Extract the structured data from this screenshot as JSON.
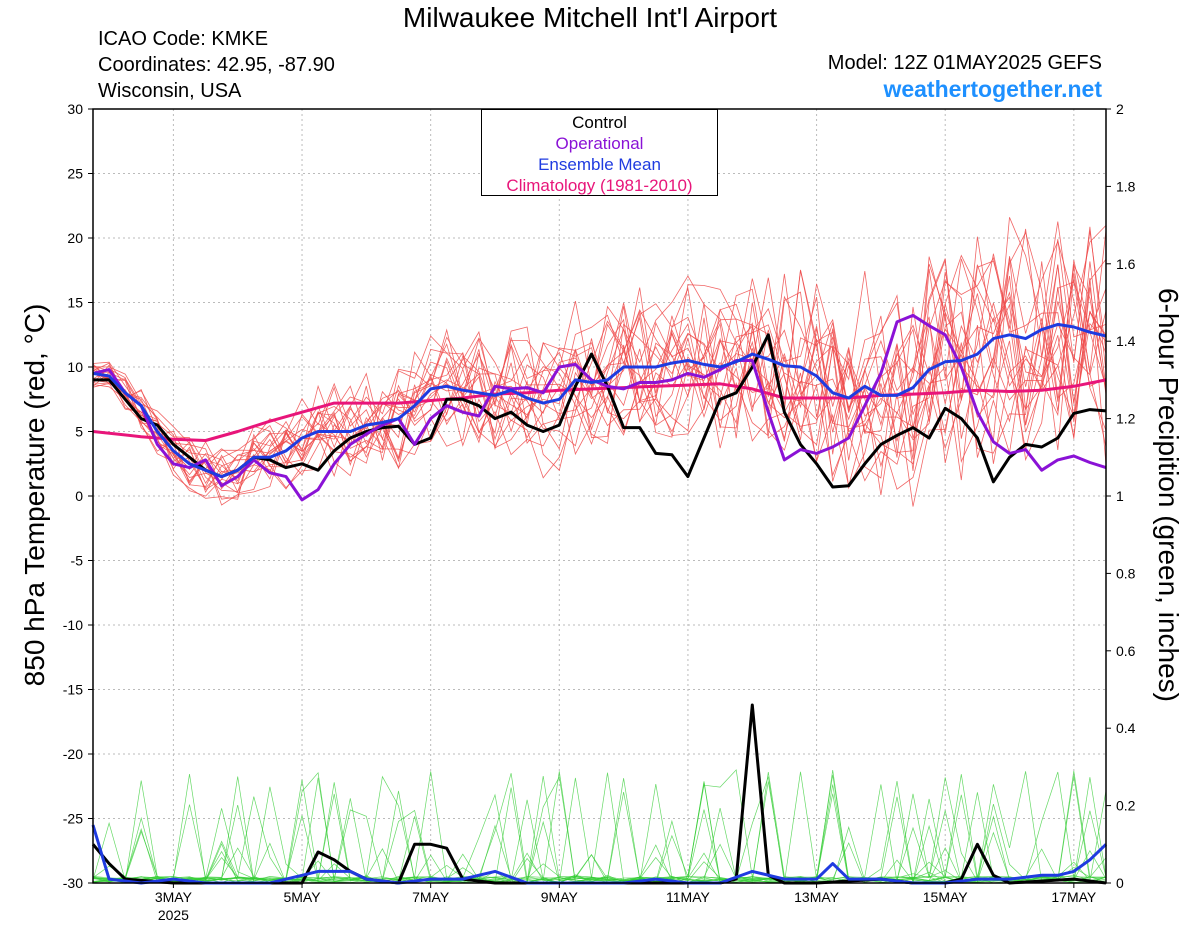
{
  "header": {
    "title": "Milwaukee Mitchell Int'l Airport",
    "icao": "ICAO Code: KMKE",
    "coords": "Coordinates: 42.95, -87.90",
    "location": "Wisconsin, USA",
    "model": "Model: 12Z 01MAY2025 GEFS",
    "brand": "weathertogether.net"
  },
  "chart_data": {
    "type": "line",
    "title": "Milwaukee Mitchell Int'l Airport",
    "y_left": {
      "label": "850 hPa Temperature (red, °C)",
      "range": [
        -30,
        30
      ],
      "ticks": [
        "30",
        "25",
        "20",
        "15",
        "10",
        "5",
        "0",
        "-5",
        "-10",
        "-15",
        "-20",
        "-25",
        "-30"
      ]
    },
    "y_right": {
      "label": "6-hour Precipition (green, inches)",
      "range": [
        0,
        2
      ],
      "ticks": [
        "2",
        "1.8",
        "1.6",
        "1.4",
        "1.2",
        "1",
        "0.8",
        "0.6",
        "0.4",
        "0.2",
        "0"
      ]
    },
    "x_axis": {
      "range_days": [
        1.75,
        17.5
      ],
      "ticks": [
        {
          "day": 3,
          "label": "3MAY",
          "sublabel": "2025"
        },
        {
          "day": 5,
          "label": "5MAY"
        },
        {
          "day": 7,
          "label": "7MAY"
        },
        {
          "day": 9,
          "label": "9MAY"
        },
        {
          "day": 11,
          "label": "11MAY"
        },
        {
          "day": 13,
          "label": "13MAY"
        },
        {
          "day": 15,
          "label": "15MAY"
        },
        {
          "day": 17,
          "label": "17MAY"
        }
      ]
    },
    "grid": true,
    "legend": {
      "placement": "top-center",
      "entries": [
        {
          "name": "Control",
          "color": "#000000"
        },
        {
          "name": "Operational",
          "color": "#8a12d6"
        },
        {
          "name": "Ensemble Mean",
          "color": "#1f3be0"
        },
        {
          "name": "Climatology (1981-2010)",
          "color": "#e8157a"
        }
      ]
    },
    "temperature_series": [
      {
        "name": "Control",
        "color": "#000000",
        "x": [
          1.75,
          2,
          2.25,
          2.5,
          2.75,
          3,
          3.25,
          3.5,
          3.75,
          4,
          4.25,
          4.5,
          4.75,
          5,
          5.25,
          5.5,
          5.75,
          6,
          6.25,
          6.5,
          6.75,
          7,
          7.25,
          7.5,
          7.75,
          8,
          8.25,
          8.5,
          8.75,
          9,
          9.25,
          9.5,
          9.75,
          10,
          10.25,
          10.5,
          10.75,
          11,
          11.25,
          11.5,
          11.75,
          12,
          12.25,
          12.5,
          12.75,
          13,
          13.25,
          13.5,
          13.75,
          14,
          14.25,
          14.5,
          14.75,
          15,
          15.25,
          15.5,
          15.75,
          16,
          16.25,
          16.5,
          16.75,
          17,
          17.25,
          17.5
        ],
        "y": [
          9,
          9,
          7.5,
          6,
          5.5,
          4,
          3,
          2,
          1.5,
          2,
          3,
          2.8,
          2.2,
          2.5,
          2,
          3.5,
          4.5,
          5,
          5.3,
          5.4,
          4,
          4.5,
          7.5,
          7.5,
          7,
          6,
          6.5,
          5.5,
          5,
          5.5,
          8.5,
          11,
          8.5,
          5.3,
          5.3,
          3.3,
          3.2,
          1.5,
          4.5,
          7.5,
          8,
          10,
          12.5,
          6.5,
          4,
          2.5,
          0.7,
          0.8,
          2.5,
          4,
          4.7,
          5.3,
          4.5,
          6.8,
          6,
          4.5,
          1.1,
          3,
          4,
          3.8,
          4.5,
          6.4,
          6.7,
          6.6
        ]
      },
      {
        "name": "Operational",
        "color": "#8a12d6",
        "x": [
          1.75,
          2,
          2.25,
          2.5,
          2.75,
          3,
          3.25,
          3.5,
          3.75,
          4,
          4.25,
          4.5,
          4.75,
          5,
          5.25,
          5.5,
          5.75,
          6,
          6.25,
          6.5,
          6.75,
          7,
          7.25,
          7.5,
          7.75,
          8,
          8.25,
          8.5,
          8.75,
          9,
          9.25,
          9.5,
          9.75,
          10,
          10.25,
          10.5,
          10.75,
          11,
          11.25,
          11.5,
          11.75,
          12,
          12.25,
          12.5,
          12.75,
          13,
          13.25,
          13.5,
          13.75,
          14,
          14.25,
          14.5,
          14.75,
          15,
          15.25,
          15.5,
          15.75,
          16,
          16.25,
          16.5,
          16.75,
          17,
          17.25,
          17.5
        ],
        "y": [
          9.5,
          9.8,
          8,
          7,
          4,
          2.5,
          2.2,
          2.8,
          0.8,
          1.5,
          2.8,
          1.8,
          1.5,
          -0.3,
          0.5,
          2.5,
          4,
          4.8,
          5.5,
          6,
          4,
          6,
          7,
          6.5,
          6.2,
          8.5,
          8.3,
          8.4,
          8,
          10,
          10.2,
          9,
          8.5,
          8.3,
          8.8,
          8.8,
          9,
          9.5,
          9.2,
          9.8,
          10.5,
          10.5,
          6.5,
          2.8,
          3.6,
          3.3,
          3.8,
          4.5,
          7,
          9.5,
          13.5,
          14,
          13.2,
          12.5,
          10,
          6.5,
          4.2,
          3.3,
          3.6,
          2,
          2.8,
          3.1,
          2.6,
          2.2
        ]
      },
      {
        "name": "Ensemble Mean",
        "color": "#1f3be0",
        "x": [
          1.75,
          2,
          2.25,
          2.5,
          2.75,
          3,
          3.25,
          3.5,
          3.75,
          4,
          4.25,
          4.5,
          4.75,
          5,
          5.25,
          5.5,
          5.75,
          6,
          6.25,
          6.5,
          6.75,
          7,
          7.25,
          7.5,
          7.75,
          8,
          8.25,
          8.5,
          8.75,
          9,
          9.25,
          9.5,
          9.75,
          10,
          10.25,
          10.5,
          10.75,
          11,
          11.25,
          11.5,
          11.75,
          12,
          12.25,
          12.5,
          12.75,
          13,
          13.25,
          13.5,
          13.75,
          14,
          14.25,
          14.5,
          14.75,
          15,
          15.25,
          15.5,
          15.75,
          16,
          16.25,
          16.5,
          16.75,
          17,
          17.25,
          17.5
        ],
        "y": [
          9.5,
          9.3,
          8,
          7,
          5,
          3.5,
          2.5,
          2,
          1.5,
          2,
          3,
          3,
          3.5,
          4.5,
          5,
          5,
          5,
          5.5,
          5.7,
          6,
          7,
          8.3,
          8.5,
          8.2,
          8,
          7.8,
          8.2,
          7.6,
          7.2,
          7.5,
          9,
          8.8,
          9,
          10,
          10,
          10,
          10.3,
          10.5,
          10.2,
          10,
          10.4,
          11,
          10.6,
          10.1,
          10,
          9.3,
          8,
          7.6,
          8.5,
          7.8,
          7.8,
          8.4,
          9.8,
          10.4,
          10.5,
          11,
          12.2,
          12.5,
          12.2,
          12.9,
          13.3,
          13.1,
          12.7,
          12.4
        ]
      },
      {
        "name": "Climatology (1981-2010)",
        "color": "#e8157a",
        "x": [
          1.75,
          2.5,
          3,
          3.5,
          4,
          4.5,
          5,
          5.5,
          6,
          6.5,
          7,
          7.5,
          8,
          8.5,
          9,
          9.5,
          10,
          10.5,
          11,
          11.5,
          12,
          12.5,
          13,
          13.5,
          14,
          14.5,
          15,
          15.5,
          16,
          16.5,
          17,
          17.5
        ],
        "y": [
          5,
          4.6,
          4.4,
          4.3,
          5,
          5.8,
          6.5,
          7.2,
          7.2,
          7.2,
          7.4,
          7.6,
          7.9,
          8,
          8.2,
          8.3,
          8.4,
          8.5,
          8.6,
          8.7,
          8.3,
          7.6,
          7.6,
          7.6,
          7.8,
          7.9,
          8,
          8.2,
          8.1,
          8.2,
          8.5,
          9
        ]
      }
    ],
    "precip_series": [
      {
        "name": "Control",
        "color": "#000000",
        "x": [
          1.75,
          2,
          2.25,
          3,
          4,
          4.5,
          4.75,
          5,
          5.25,
          5.5,
          5.75,
          6,
          6.5,
          6.75,
          7,
          7.25,
          7.5,
          8,
          9,
          10,
          11,
          11.5,
          11.75,
          12,
          12.25,
          12.5,
          13,
          14,
          14.5,
          15,
          15.25,
          15.5,
          15.75,
          16,
          17,
          17.5
        ],
        "y": [
          0.1,
          0.05,
          0.01,
          0,
          0,
          0,
          0,
          0,
          0.08,
          0.06,
          0.03,
          0.01,
          0,
          0.1,
          0.1,
          0.09,
          0.01,
          0,
          0,
          0,
          0,
          0,
          0.01,
          0.46,
          0.02,
          0,
          0,
          0.01,
          0,
          0,
          0.01,
          0.1,
          0.02,
          0,
          0.01,
          0
        ]
      },
      {
        "name": "Ensemble Mean",
        "color": "#1f3be0",
        "x": [
          1.75,
          2,
          2.5,
          3,
          3.5,
          4,
          4.5,
          5,
          5.25,
          5.5,
          5.75,
          6,
          6.5,
          7,
          7.5,
          8,
          8.5,
          9,
          10,
          10.5,
          11,
          11.5,
          12,
          12.5,
          13,
          13.25,
          13.5,
          14,
          14.5,
          15,
          15.5,
          16,
          16.5,
          16.75,
          17,
          17.25,
          17.5
        ],
        "y": [
          0.15,
          0.01,
          0,
          0.01,
          0,
          0,
          0,
          0.02,
          0.03,
          0.03,
          0.03,
          0.01,
          0,
          0.01,
          0.01,
          0.03,
          0,
          0,
          0,
          0.01,
          0,
          0,
          0.03,
          0.01,
          0.01,
          0.05,
          0.01,
          0.01,
          0,
          0,
          0.01,
          0.01,
          0.02,
          0.02,
          0.03,
          0.06,
          0.1
        ]
      }
    ]
  }
}
